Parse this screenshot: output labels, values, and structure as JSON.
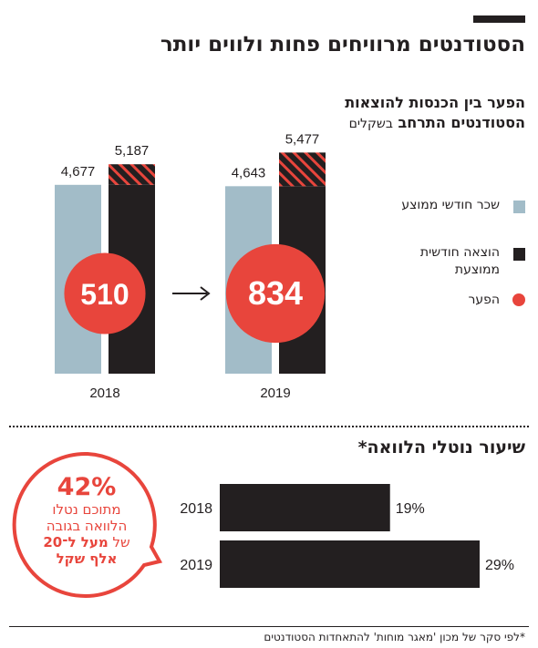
{
  "title": "הסטודנטים מרוויחים פחות ולווים יותר",
  "legend": {
    "title_bold": "הפער בין הכנסות להוצאות הסטודנטים התרחב",
    "title_unit": "בשקלים",
    "items": [
      {
        "label": "שכר חודשי ממוצע",
        "color": "#a2bcc8",
        "swatch": "solid"
      },
      {
        "label": "הוצאה חודשית ממוצעת",
        "color": "#231f20",
        "swatch": "solid"
      },
      {
        "label": "הפער",
        "color": "#e8453c",
        "swatch": "circle"
      }
    ]
  },
  "loan_title": "שיעור נוטלי הלוואה*",
  "callout": {
    "percent": "42%",
    "line1": "מתוכם נטלו",
    "line2": "הלוואה בגובה",
    "line3_prefix": "של",
    "line3_bold": "מעל ל־20",
    "line4": "אלף שקל"
  },
  "footnote": "*לפי סקר של מכון 'מאגר מוחות' להתאחדות הסטודנטים",
  "colors": {
    "salary": "#a2bcc8",
    "expense": "#231f20",
    "gap": "#e8453c",
    "text": "#231f20"
  },
  "chart_data": [
    {
      "type": "bar",
      "categories": [
        "2018",
        "2019"
      ],
      "series": [
        {
          "name": "שכר חודשי ממוצע",
          "values": [
            4677,
            4643
          ],
          "labels": [
            "4,677",
            "4,643"
          ]
        },
        {
          "name": "הוצאה חודשית ממוצעת",
          "values": [
            5187,
            5477
          ],
          "labels": [
            "5,187",
            "5,477"
          ]
        },
        {
          "name": "הפער",
          "values": [
            510,
            834
          ],
          "labels": [
            "510",
            "834"
          ]
        }
      ],
      "xlabel": "",
      "ylabel": ""
    },
    {
      "type": "bar",
      "orientation": "horizontal",
      "categories": [
        "2018",
        "2019"
      ],
      "values": [
        19,
        29
      ],
      "labels": [
        "19%",
        "29%"
      ],
      "xlim": [
        0,
        29
      ]
    }
  ]
}
